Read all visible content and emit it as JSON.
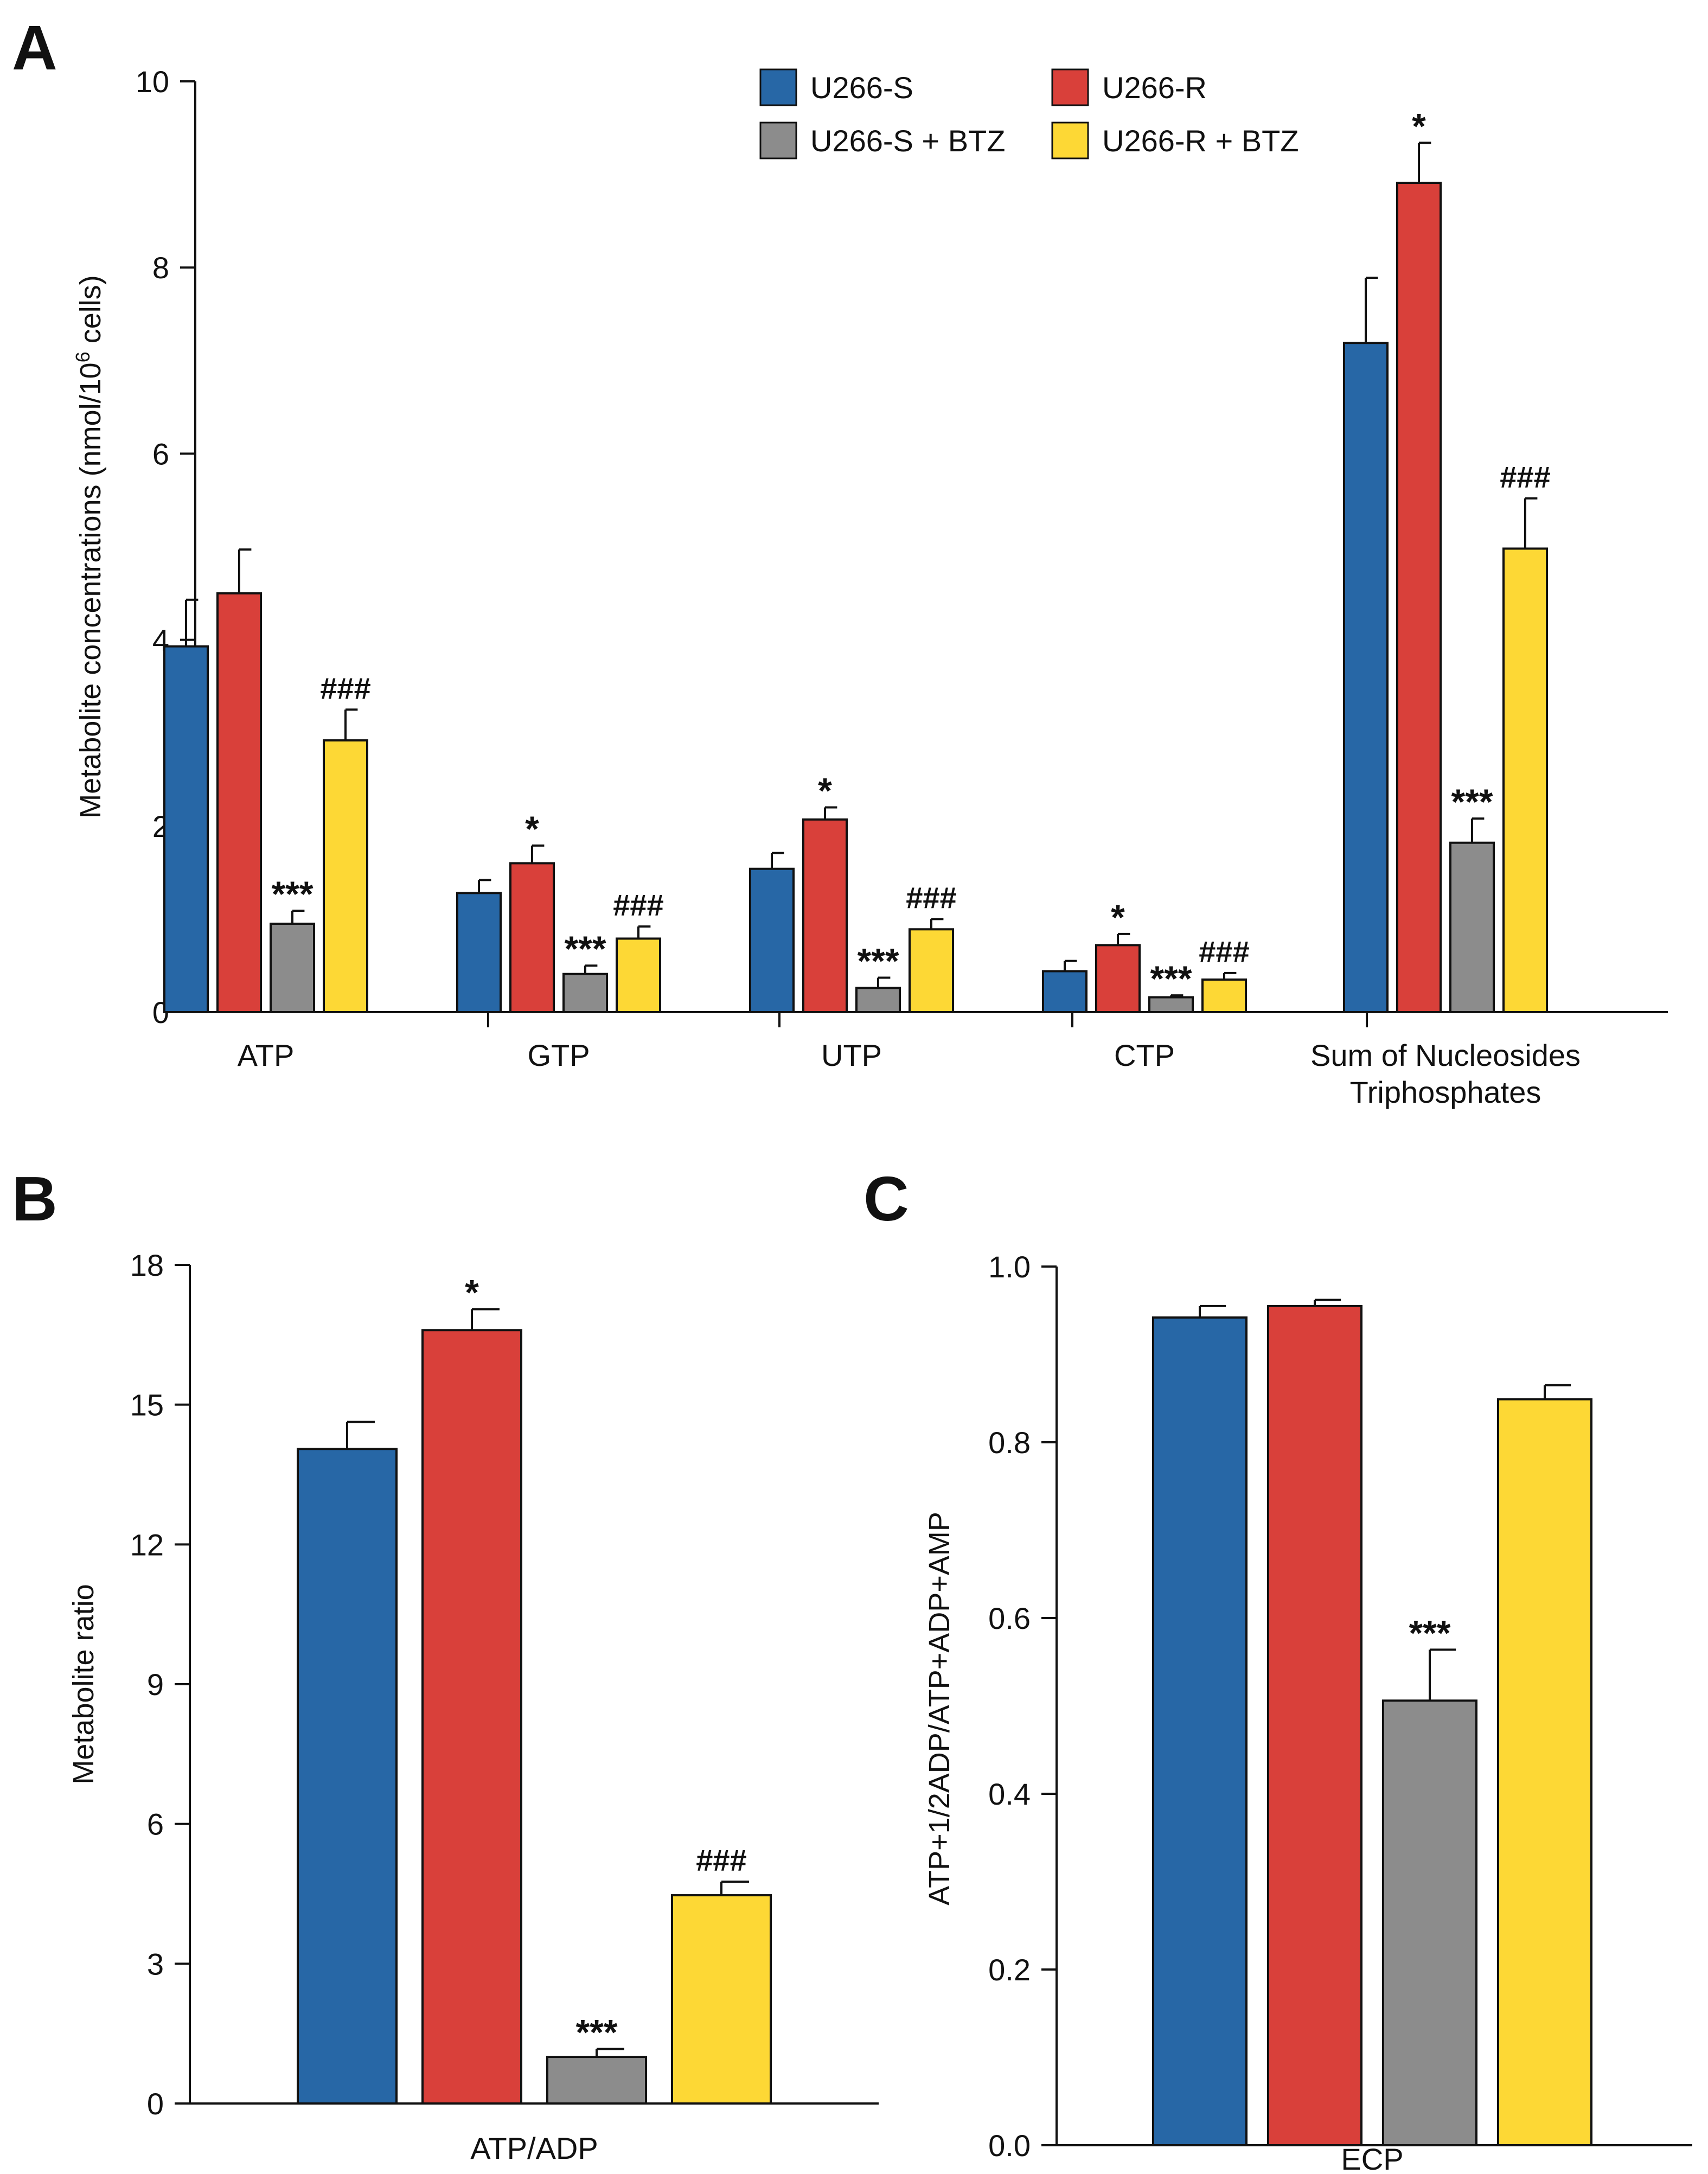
{
  "colors": {
    "U266-S": "#2767a6",
    "U266-R": "#d9403a",
    "U266-S + BTZ": "#8c8c8c",
    "U266-R + BTZ": "#fdd835",
    "axis": "#111111"
  },
  "legend": {
    "items": [
      "U266-S",
      "U266-R",
      "U266-S + BTZ",
      "U266-R + BTZ"
    ]
  },
  "chart_data": [
    {
      "panel": "A",
      "type": "bar",
      "ylabel_pre": "Metabolite concentrations (nmol/10",
      "ylabel_sup": "6",
      "ylabel_post": " cells)",
      "ylim": [
        0,
        10
      ],
      "yticks": [
        "0",
        "2",
        "4",
        "6",
        "8",
        "10"
      ],
      "categories": [
        {
          "label": [
            "ATP"
          ]
        },
        {
          "label": [
            "GTP"
          ]
        },
        {
          "label": [
            "UTP"
          ]
        },
        {
          "label": [
            "CTP"
          ]
        },
        {
          "label": [
            "Sum of Nucleosides",
            "Triphosphates"
          ]
        }
      ],
      "series": [
        {
          "name": "U266-S",
          "values": [
            3.93,
            1.28,
            1.54,
            0.44,
            7.19
          ],
          "errors": [
            0.5,
            0.14,
            0.17,
            0.11,
            0.7
          ],
          "annotations": [
            "",
            "",
            "",
            "",
            ""
          ]
        },
        {
          "name": "U266-R",
          "values": [
            4.5,
            1.6,
            2.07,
            0.72,
            8.91
          ],
          "errors": [
            0.47,
            0.19,
            0.13,
            0.12,
            0.43
          ],
          "annotations": [
            "",
            "*",
            "*",
            "*",
            "*"
          ]
        },
        {
          "name": "U266-S + BTZ",
          "values": [
            0.95,
            0.41,
            0.26,
            0.16,
            1.82
          ],
          "errors": [
            0.14,
            0.09,
            0.11,
            0.02,
            0.26
          ],
          "annotations": [
            "***",
            "***",
            "***",
            "***",
            "***"
          ]
        },
        {
          "name": "U266-R + BTZ",
          "values": [
            2.92,
            0.79,
            0.89,
            0.35,
            4.98
          ],
          "errors": [
            0.33,
            0.13,
            0.11,
            0.07,
            0.54
          ],
          "annotations": [
            "###",
            "###",
            "###",
            "###",
            "###"
          ]
        }
      ]
    },
    {
      "panel": "B",
      "type": "bar",
      "ylabel": "Metabolite ratio",
      "ylim": [
        0,
        18
      ],
      "yticks": [
        "0",
        "3",
        "6",
        "9",
        "12",
        "15",
        "18"
      ],
      "categories": [
        {
          "label": [
            "ATP/ADP"
          ]
        }
      ],
      "series": [
        {
          "name": "U266-S",
          "values": [
            14.05
          ],
          "errors": [
            0.58
          ],
          "annotations": [
            ""
          ]
        },
        {
          "name": "U266-R",
          "values": [
            16.6
          ],
          "errors": [
            0.45
          ],
          "annotations": [
            "*"
          ]
        },
        {
          "name": "U266-S + BTZ",
          "values": [
            1.0
          ],
          "errors": [
            0.17
          ],
          "annotations": [
            "***"
          ]
        },
        {
          "name": "U266-R + BTZ",
          "values": [
            4.47
          ],
          "errors": [
            0.29
          ],
          "annotations": [
            "###"
          ]
        }
      ]
    },
    {
      "panel": "C",
      "type": "bar",
      "ylabel": "ATP+1/2ADP/ATP+ADP+AMP",
      "ylim": [
        0,
        1.0
      ],
      "yticks": [
        "0.0",
        "0.2",
        "0.4",
        "0.6",
        "0.8",
        "1.0"
      ],
      "categories": [
        {
          "label": [
            "ECP"
          ]
        }
      ],
      "series": [
        {
          "name": "U266-S",
          "values": [
            0.942
          ],
          "errors": [
            0.013
          ],
          "annotations": [
            ""
          ]
        },
        {
          "name": "U266-R",
          "values": [
            0.955
          ],
          "errors": [
            0.007
          ],
          "annotations": [
            ""
          ]
        },
        {
          "name": "U266-S + BTZ",
          "values": [
            0.506
          ],
          "errors": [
            0.058
          ],
          "annotations": [
            "***"
          ]
        },
        {
          "name": "U266-R + BTZ",
          "values": [
            0.849
          ],
          "errors": [
            0.016
          ],
          "annotations": [
            ""
          ]
        }
      ]
    }
  ]
}
